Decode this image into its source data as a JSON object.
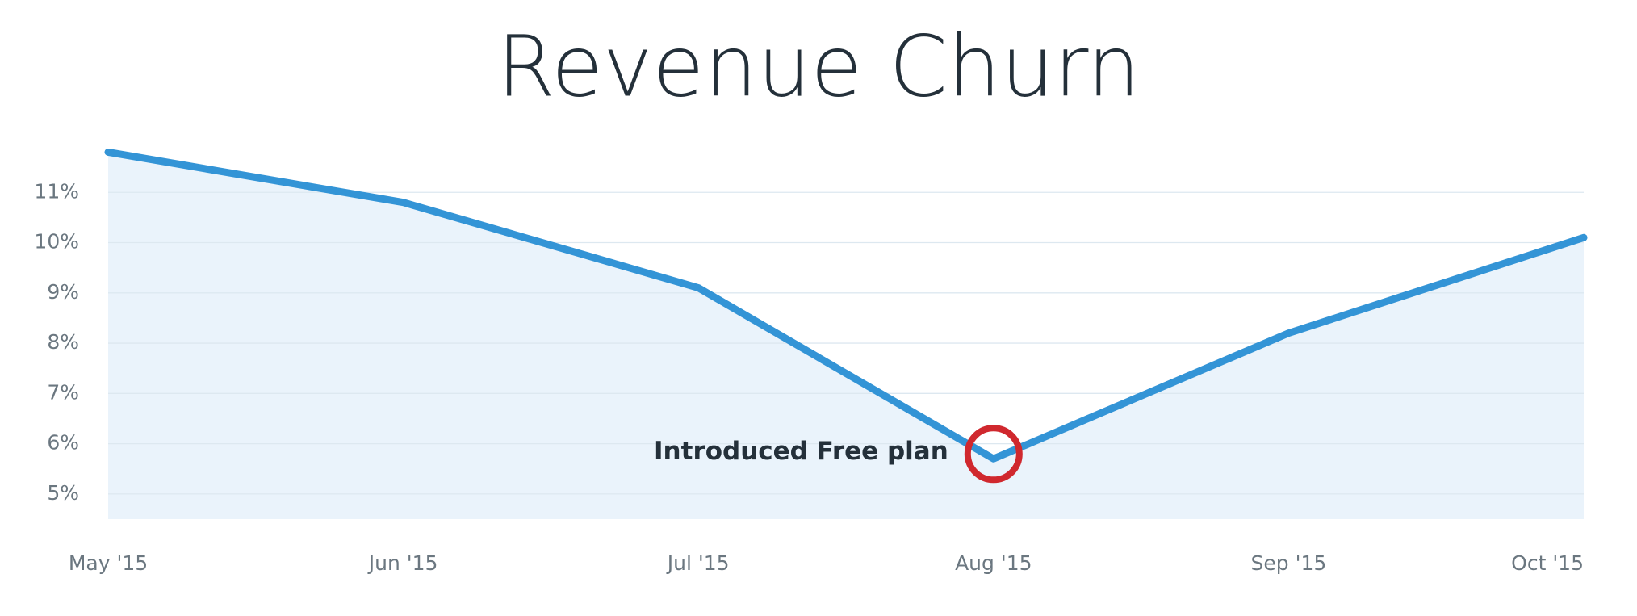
{
  "chart_data": {
    "type": "area",
    "title": "Revenue Churn",
    "categories": [
      "May '15",
      "Jun '15",
      "Jul '15",
      "Aug '15",
      "Sep '15",
      "Oct '15"
    ],
    "values": [
      11.8,
      10.8,
      9.1,
      5.7,
      8.2,
      10.1
    ],
    "color": "#3394d6",
    "fill_color": "#eaf3fb",
    "ylim": [
      4.5,
      12
    ],
    "yticks": [
      {
        "value": 5,
        "label": "5%"
      },
      {
        "value": 6,
        "label": "6%"
      },
      {
        "value": 7,
        "label": "7%"
      },
      {
        "value": 8,
        "label": "8%"
      },
      {
        "value": 9,
        "label": "9%"
      },
      {
        "value": 10,
        "label": "10%"
      },
      {
        "value": 11,
        "label": "11%"
      }
    ],
    "grid": true,
    "annotation": "Introduced Free plan",
    "annotation_color": "#d0282e"
  }
}
